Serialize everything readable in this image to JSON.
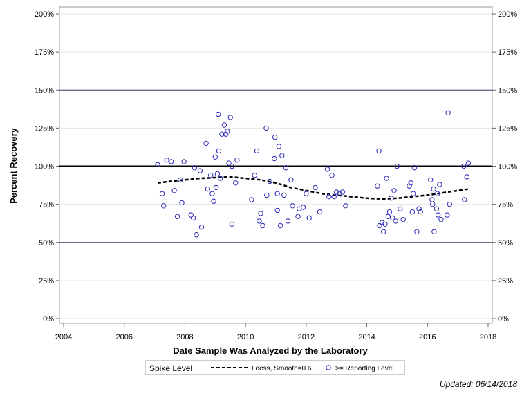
{
  "chart_data": {
    "type": "scatter",
    "xlabel": "Date Sample Was Analyzed by the Laboratory",
    "ylabel": "Percent Recovery",
    "xlim": [
      2004,
      2018
    ],
    "ylim": [
      0,
      200
    ],
    "x_ticks": [
      2004,
      2006,
      2008,
      2010,
      2012,
      2014,
      2016,
      2018
    ],
    "x_tick_labels": [
      "2004",
      "2006",
      "2008",
      "2010",
      "2012",
      "2014",
      "2016",
      "2018"
    ],
    "y_ticks": [
      0,
      25,
      50,
      75,
      100,
      125,
      150,
      175,
      200
    ],
    "y_tick_labels": [
      "0%",
      "25%",
      "50%",
      "75%",
      "100%",
      "125%",
      "150%",
      "175%",
      "200%"
    ],
    "grid": true,
    "reference_lines": [
      {
        "y": 100,
        "style": "thick"
      },
      {
        "y": 150,
        "style": "thin"
      },
      {
        "y": 50,
        "style": "thin"
      }
    ],
    "legend": {
      "position": "bottom",
      "title": "Spike Level",
      "entries": [
        "Loess, Smooth=0.6",
        ">= Reporting Level"
      ]
    },
    "series": [
      {
        "name": ">= Reporting Level",
        "kind": "points",
        "marker": "open-circle",
        "color": "#2a2ab8",
        "points": [
          [
            2007.1,
            101
          ],
          [
            2007.25,
            82
          ],
          [
            2007.3,
            74
          ],
          [
            2007.4,
            104
          ],
          [
            2007.55,
            103
          ],
          [
            2007.65,
            84
          ],
          [
            2007.75,
            67
          ],
          [
            2007.85,
            91
          ],
          [
            2007.9,
            76
          ],
          [
            2007.97,
            103
          ],
          [
            2008.2,
            68
          ],
          [
            2008.28,
            66
          ],
          [
            2008.32,
            99
          ],
          [
            2008.38,
            55
          ],
          [
            2008.5,
            97
          ],
          [
            2008.55,
            60
          ],
          [
            2008.7,
            115
          ],
          [
            2008.75,
            85
          ],
          [
            2008.85,
            94
          ],
          [
            2008.9,
            82
          ],
          [
            2008.95,
            77
          ],
          [
            2009.0,
            106
          ],
          [
            2009.03,
            86
          ],
          [
            2009.07,
            95
          ],
          [
            2009.1,
            134
          ],
          [
            2009.12,
            110
          ],
          [
            2009.17,
            92
          ],
          [
            2009.22,
            121
          ],
          [
            2009.3,
            127
          ],
          [
            2009.35,
            121
          ],
          [
            2009.4,
            123
          ],
          [
            2009.45,
            102
          ],
          [
            2009.5,
            132
          ],
          [
            2009.55,
            100
          ],
          [
            2009.55,
            62
          ],
          [
            2009.67,
            89
          ],
          [
            2009.72,
            104
          ],
          [
            2010.2,
            78
          ],
          [
            2010.3,
            94
          ],
          [
            2010.37,
            110
          ],
          [
            2010.45,
            64
          ],
          [
            2010.5,
            69
          ],
          [
            2010.57,
            61
          ],
          [
            2010.68,
            125
          ],
          [
            2010.7,
            81
          ],
          [
            2010.8,
            90
          ],
          [
            2010.95,
            105
          ],
          [
            2010.97,
            119
          ],
          [
            2011.05,
            71
          ],
          [
            2011.05,
            82
          ],
          [
            2011.1,
            113
          ],
          [
            2011.15,
            61
          ],
          [
            2011.2,
            107
          ],
          [
            2011.27,
            81
          ],
          [
            2011.33,
            99
          ],
          [
            2011.4,
            64
          ],
          [
            2011.5,
            91
          ],
          [
            2011.55,
            74
          ],
          [
            2011.73,
            67
          ],
          [
            2011.77,
            72
          ],
          [
            2011.9,
            73
          ],
          [
            2012.0,
            82
          ],
          [
            2012.1,
            66
          ],
          [
            2012.3,
            86
          ],
          [
            2012.45,
            70
          ],
          [
            2012.7,
            98
          ],
          [
            2012.75,
            80
          ],
          [
            2012.85,
            94
          ],
          [
            2012.92,
            80
          ],
          [
            2013.0,
            83
          ],
          [
            2013.1,
            82
          ],
          [
            2013.2,
            83
          ],
          [
            2013.3,
            74
          ],
          [
            2014.35,
            87
          ],
          [
            2014.4,
            110
          ],
          [
            2014.42,
            61
          ],
          [
            2014.5,
            63
          ],
          [
            2014.55,
            57
          ],
          [
            2014.6,
            62
          ],
          [
            2014.65,
            92
          ],
          [
            2014.7,
            67
          ],
          [
            2014.75,
            70
          ],
          [
            2014.8,
            79
          ],
          [
            2014.85,
            66
          ],
          [
            2014.9,
            84
          ],
          [
            2014.95,
            64
          ],
          [
            2015.0,
            100
          ],
          [
            2015.1,
            72
          ],
          [
            2015.2,
            65
          ],
          [
            2015.4,
            87
          ],
          [
            2015.45,
            89
          ],
          [
            2015.5,
            70
          ],
          [
            2015.53,
            82
          ],
          [
            2015.57,
            99
          ],
          [
            2015.65,
            57
          ],
          [
            2015.72,
            72
          ],
          [
            2015.77,
            70
          ],
          [
            2016.1,
            91
          ],
          [
            2016.15,
            78
          ],
          [
            2016.17,
            75
          ],
          [
            2016.2,
            85
          ],
          [
            2016.22,
            57
          ],
          [
            2016.3,
            72
          ],
          [
            2016.33,
            82
          ],
          [
            2016.35,
            68
          ],
          [
            2016.4,
            88
          ],
          [
            2016.45,
            65
          ],
          [
            2016.65,
            68
          ],
          [
            2016.68,
            135
          ],
          [
            2016.73,
            75
          ],
          [
            2017.2,
            100
          ],
          [
            2017.22,
            78
          ],
          [
            2017.3,
            93
          ],
          [
            2017.35,
            102
          ]
        ]
      },
      {
        "name": "Loess, Smooth=0.6",
        "kind": "line",
        "style": "dashed",
        "color": "#000000",
        "points": [
          [
            2007.1,
            89
          ],
          [
            2007.5,
            90
          ],
          [
            2008.0,
            91
          ],
          [
            2008.5,
            92
          ],
          [
            2009.0,
            92.5
          ],
          [
            2009.5,
            93
          ],
          [
            2010.0,
            92
          ],
          [
            2010.5,
            91
          ],
          [
            2011.0,
            89
          ],
          [
            2011.5,
            86
          ],
          [
            2012.0,
            84
          ],
          [
            2012.5,
            82
          ],
          [
            2013.0,
            81
          ],
          [
            2013.5,
            80
          ],
          [
            2014.0,
            79
          ],
          [
            2014.5,
            78.5
          ],
          [
            2015.0,
            79
          ],
          [
            2015.5,
            80
          ],
          [
            2016.0,
            81
          ],
          [
            2016.5,
            82.5
          ],
          [
            2017.0,
            84
          ],
          [
            2017.35,
            85
          ]
        ]
      }
    ]
  },
  "footer": {
    "updated": "Updated: 06/14/2018"
  }
}
